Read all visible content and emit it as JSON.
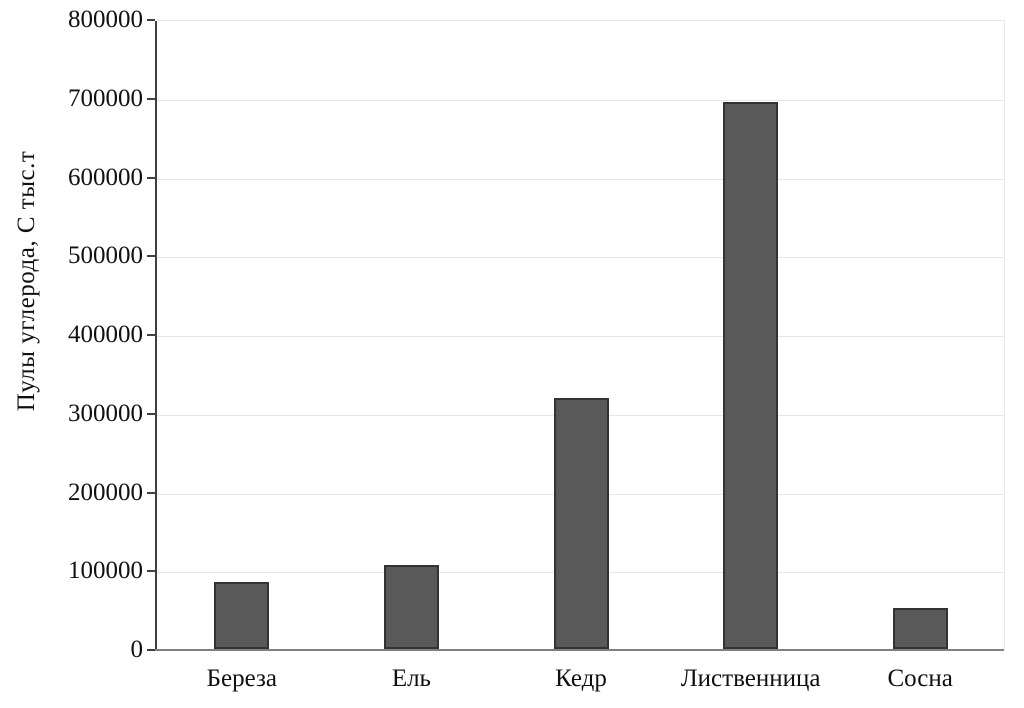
{
  "chart_data": {
    "type": "bar",
    "title": "",
    "categories": [
      "Береза",
      "Ель",
      "Кедр",
      "Лиственница",
      "Сосна"
    ],
    "values": [
      85000,
      107000,
      319000,
      694000,
      52000
    ],
    "xlabel": "",
    "ylabel": "Пулы углерода, С тыс.т",
    "ylim": [
      0,
      800000
    ],
    "yticks": [
      0,
      100000,
      200000,
      300000,
      400000,
      500000,
      600000,
      700000,
      800000
    ],
    "grid": "horizontal",
    "legend": "none",
    "colors": {
      "bar_fill": "#595959",
      "bar_border": "#333333",
      "gridline": "#e7e7e7",
      "plot_border": "#e7e7e7",
      "axis_left": "#404040",
      "axis_bottom": "#808080",
      "text": "#111111"
    }
  }
}
